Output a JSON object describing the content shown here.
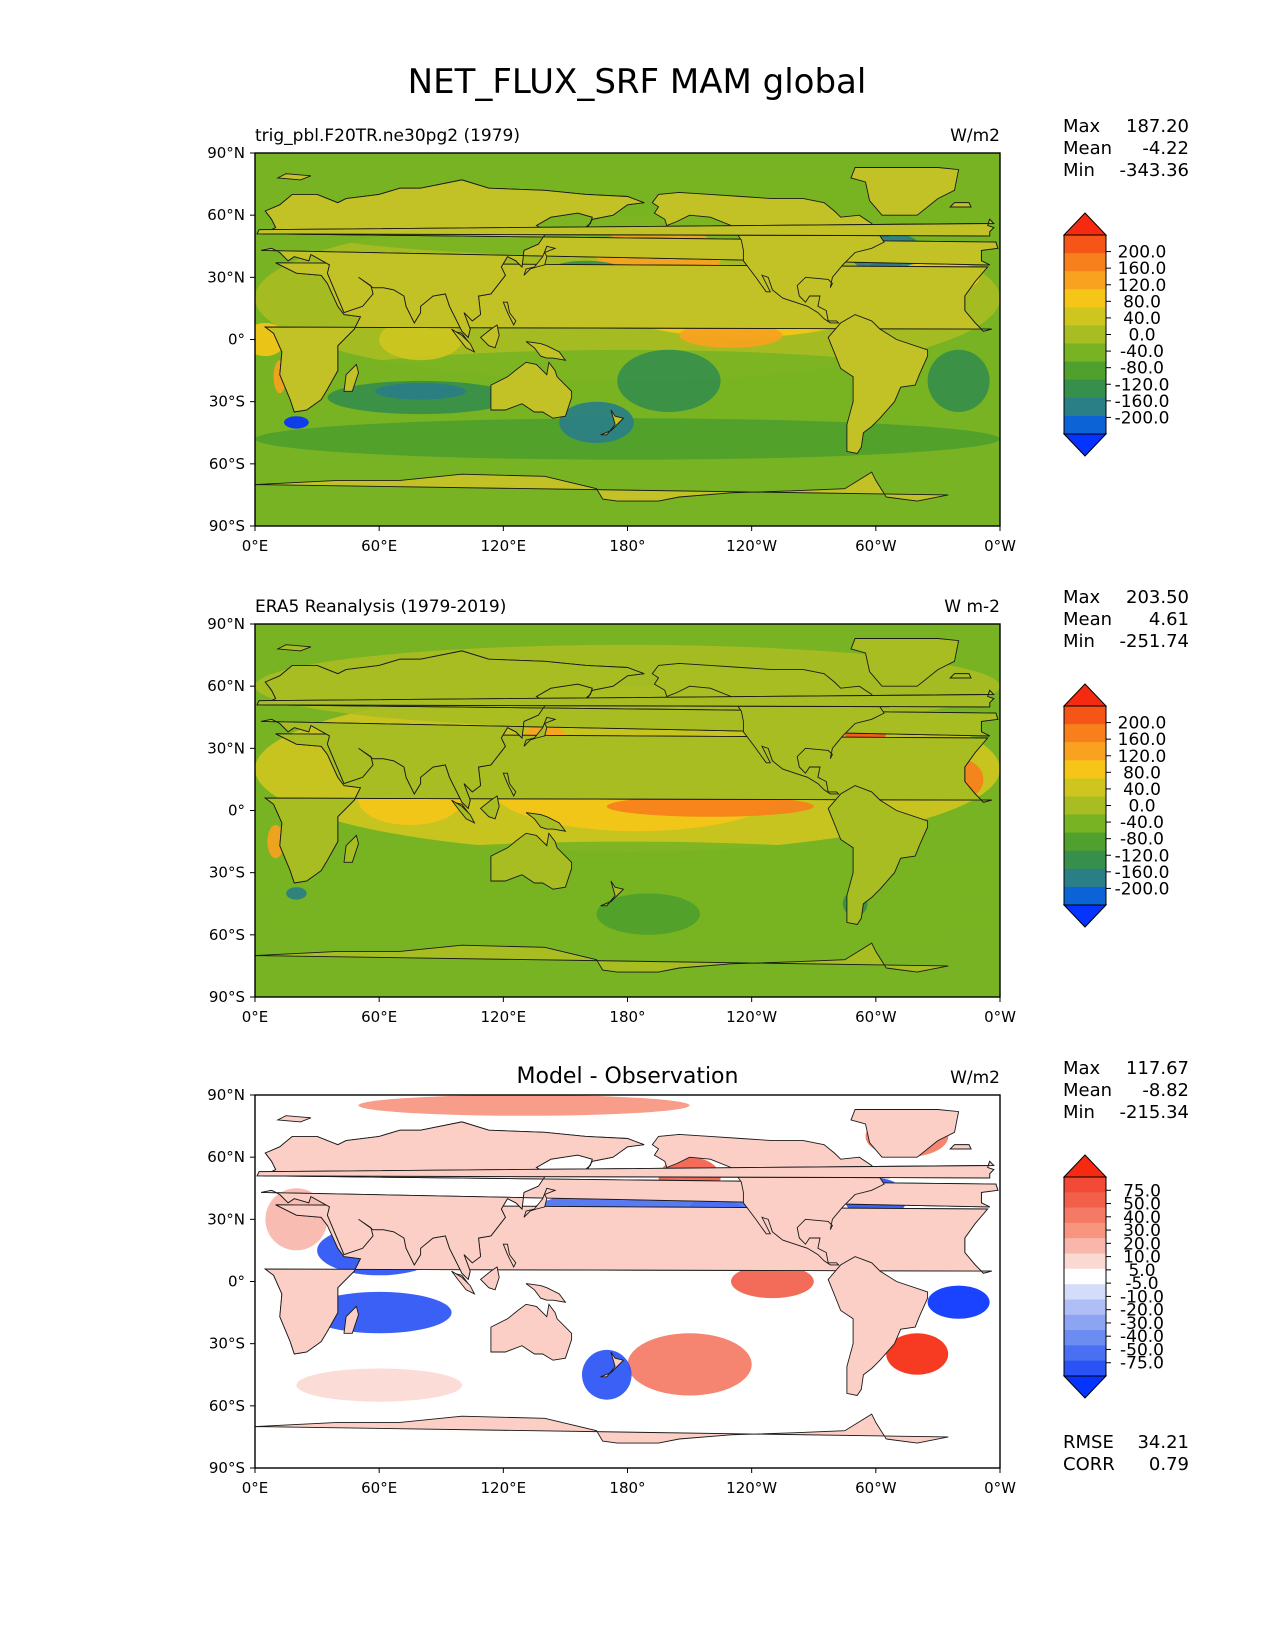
{
  "figure": {
    "title": "NET_FLUX_SRF MAM global"
  },
  "colors": {
    "cmap_main": [
      "#0533ff",
      "#0b63d6",
      "#2a7e86",
      "#368f4b",
      "#4fa02c",
      "#78b323",
      "#a8bd22",
      "#cec51f",
      "#f5c618",
      "#f8a21f",
      "#f77f1c",
      "#f55517",
      "#f62a10"
    ],
    "cmap_diff": [
      "#0533ff",
      "#2a52f5",
      "#4a6ff2",
      "#6b8cf0",
      "#8ca4f2",
      "#afbff5",
      "#d3dcf9",
      "#ffffff",
      "#fbd9d3",
      "#f9b6ab",
      "#f7957f",
      "#f47a65",
      "#f2604c",
      "#f24a36",
      "#f62a10"
    ],
    "land_main": "#c2c227",
    "land_era5": "#a8bd22",
    "coastline": "#1a1a1a"
  },
  "chart_data": [
    {
      "type": "heatmap",
      "panel": "model",
      "left_title": "trig_pbl.F20TR.ne30pg2 (1979)",
      "center_title": "",
      "units": "W/m2",
      "stats": [
        {
          "label": "Max",
          "value": "187.20"
        },
        {
          "label": "Mean",
          "value": "-4.22"
        },
        {
          "label": "Min",
          "value": "-343.36"
        }
      ],
      "xlabels": [
        "0°E",
        "60°E",
        "120°E",
        "180°",
        "120°W",
        "60°W",
        "0°W"
      ],
      "ylabels": [
        "90°N",
        "60°N",
        "30°N",
        "0°",
        "30°S",
        "60°S",
        "90°S"
      ],
      "xlim": [
        0,
        360
      ],
      "ylim": [
        -90,
        90
      ],
      "colorbar": {
        "levels": [
          "200.0",
          "160.0",
          "120.0",
          "80.0",
          "40.0",
          "0.0",
          "-40.0",
          "-80.0",
          "-120.0",
          "-160.0",
          "-200.0"
        ],
        "extend": "both"
      },
      "footer": []
    },
    {
      "type": "heatmap",
      "panel": "obs",
      "left_title": "ERA5 Reanalysis (1979-2019)",
      "center_title": "",
      "units": "W m-2",
      "stats": [
        {
          "label": "Max",
          "value": "203.50"
        },
        {
          "label": "Mean",
          "value": "4.61"
        },
        {
          "label": "Min",
          "value": "-251.74"
        }
      ],
      "xlabels": [
        "0°E",
        "60°E",
        "120°E",
        "180°",
        "120°W",
        "60°W",
        "0°W"
      ],
      "ylabels": [
        "90°N",
        "60°N",
        "30°N",
        "0°",
        "30°S",
        "60°S",
        "90°S"
      ],
      "xlim": [
        0,
        360
      ],
      "ylim": [
        -90,
        90
      ],
      "colorbar": {
        "levels": [
          "200.0",
          "160.0",
          "120.0",
          "80.0",
          "40.0",
          "0.0",
          "-40.0",
          "-80.0",
          "-120.0",
          "-160.0",
          "-200.0"
        ],
        "extend": "both"
      },
      "footer": []
    },
    {
      "type": "heatmap",
      "panel": "diff",
      "left_title": "",
      "center_title": "Model - Observation",
      "units": "W/m2",
      "stats": [
        {
          "label": "Max",
          "value": "117.67"
        },
        {
          "label": "Mean",
          "value": "-8.82"
        },
        {
          "label": "Min",
          "value": "-215.34"
        }
      ],
      "xlabels": [
        "0°E",
        "60°E",
        "120°E",
        "180°",
        "120°W",
        "60°W",
        "0°W"
      ],
      "ylabels": [
        "90°N",
        "60°N",
        "30°N",
        "0°",
        "30°S",
        "60°S",
        "90°S"
      ],
      "xlim": [
        0,
        360
      ],
      "ylim": [
        -90,
        90
      ],
      "colorbar": {
        "levels": [
          "75.0",
          "50.0",
          "40.0",
          "30.0",
          "20.0",
          "10.0",
          "5.0",
          "-5.0",
          "-10.0",
          "-20.0",
          "-30.0",
          "-40.0",
          "-50.0",
          "-75.0"
        ],
        "extend": "both"
      },
      "footer": [
        {
          "label": "RMSE",
          "value": "34.21"
        },
        {
          "label": "CORR",
          "value": "0.79"
        }
      ]
    }
  ]
}
